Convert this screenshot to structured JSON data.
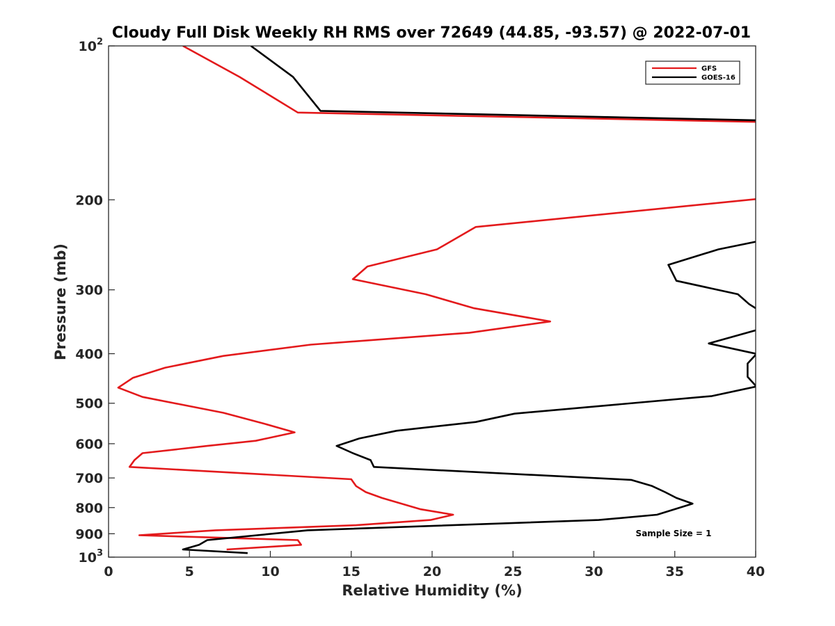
{
  "chart_data": {
    "type": "line",
    "title": "Cloudy Full Disk Weekly RH RMS over 72649 (44.85, -93.57) @ 2022-07-01",
    "xlabel": "Relative Humidity (%)",
    "ylabel": "Pressure (mb)",
    "xlim": [
      0,
      40
    ],
    "ylim": [
      100,
      1000
    ],
    "y_scale": "log",
    "y_reversed": true,
    "grid": false,
    "legend_position": "top-right",
    "x_ticks": [
      "0",
      "5",
      "10",
      "15",
      "20",
      "25",
      "30",
      "35",
      "40"
    ],
    "y_ticks": [
      {
        "value": 100,
        "base": "10",
        "exp": "2"
      },
      {
        "value": 200,
        "label": "200"
      },
      {
        "value": 300,
        "label": "300"
      },
      {
        "value": 400,
        "label": "400"
      },
      {
        "value": 500,
        "label": "500"
      },
      {
        "value": 600,
        "label": "600"
      },
      {
        "value": 700,
        "label": "700"
      },
      {
        "value": 800,
        "label": "800"
      },
      {
        "value": 900,
        "label": "900"
      },
      {
        "value": 1000,
        "base": "10",
        "exp": "3"
      }
    ],
    "annotation": "Sample Size = 1",
    "series": [
      {
        "name": "GFS",
        "color": "#e31a1c",
        "segments": [
          [
            [
              4.6,
              100
            ],
            [
              8.1,
              115
            ],
            [
              11.7,
              135
            ],
            [
              41,
              141
            ]
          ],
          [
            [
              41,
              198
            ],
            [
              22.7,
              226
            ],
            [
              20.3,
              250
            ],
            [
              16,
              270
            ],
            [
              15.1,
              286
            ],
            [
              19.6,
              306
            ],
            [
              22.6,
              326
            ],
            [
              27.3,
              346
            ],
            [
              22.3,
              364
            ],
            [
              12.5,
              384
            ],
            [
              7.1,
              404
            ],
            [
              3.5,
              426
            ],
            [
              1.5,
              446
            ],
            [
              0.6,
              466
            ],
            [
              2.1,
              486
            ],
            [
              7.1,
              522
            ],
            [
              9.6,
              548
            ],
            [
              11.5,
              570
            ],
            [
              9.1,
              592
            ],
            [
              6.1,
              606
            ],
            [
              2.1,
              626
            ],
            [
              1.6,
              646
            ],
            [
              1.3,
              666
            ],
            [
              15,
              704
            ],
            [
              15.3,
              726
            ],
            [
              15.9,
              746
            ],
            [
              16.9,
              766
            ],
            [
              19.3,
              806
            ],
            [
              21.3,
              826
            ],
            [
              19.9,
              846
            ],
            [
              15.3,
              866
            ],
            [
              6.6,
              886
            ],
            [
              1.9,
              906
            ],
            [
              11.7,
              926
            ],
            [
              11.9,
              946
            ],
            [
              7.3,
              966
            ]
          ]
        ]
      },
      {
        "name": "GOES-16",
        "color": "#000000",
        "segments": [
          [
            [
              8.8,
              100
            ],
            [
              11.4,
              115
            ],
            [
              13.1,
              134
            ],
            [
              41,
              140
            ]
          ],
          [
            [
              41,
              238
            ],
            [
              37.7,
              250
            ],
            [
              34.6,
              268
            ],
            [
              35.1,
              288
            ],
            [
              38.9,
              306
            ],
            [
              39.6,
              320
            ],
            [
              40,
              326
            ]
          ],
          [
            [
              40,
              360
            ],
            [
              37.1,
              382
            ],
            [
              40,
              400
            ]
          ],
          [
            [
              40,
              402
            ],
            [
              39.5,
              418
            ],
            [
              39.5,
              444
            ],
            [
              40,
              462
            ]
          ],
          [
            [
              40,
              464
            ],
            [
              37.3,
              484
            ],
            [
              25.1,
              524
            ],
            [
              22.7,
              544
            ],
            [
              17.8,
              566
            ],
            [
              15.5,
              586
            ],
            [
              14.1,
              606
            ],
            [
              15.1,
              626
            ],
            [
              16.2,
              646
            ],
            [
              16.4,
              666
            ],
            [
              32.3,
              706
            ],
            [
              33.6,
              726
            ],
            [
              34.4,
              746
            ],
            [
              35.1,
              766
            ],
            [
              36.1,
              786
            ],
            [
              33.9,
              826
            ],
            [
              30.3,
              846
            ],
            [
              12.3,
              886
            ],
            [
              6.1,
              926
            ],
            [
              5.6,
              946
            ],
            [
              4.6,
              966
            ],
            [
              8.6,
              982
            ]
          ]
        ]
      }
    ]
  }
}
